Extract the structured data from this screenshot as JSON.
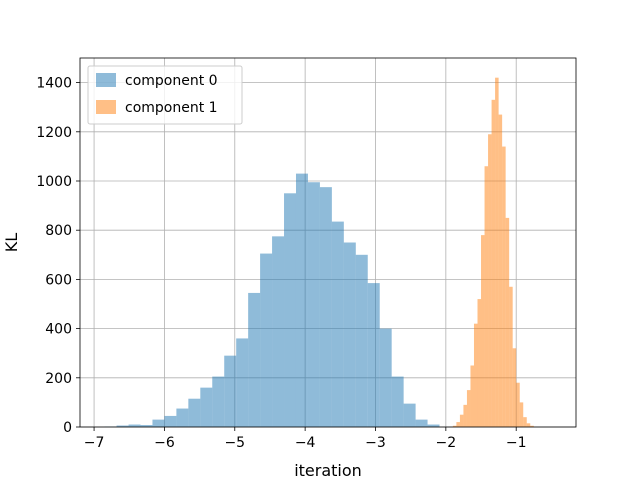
{
  "chart_data": {
    "type": "bar",
    "title": "",
    "xlabel": "iteration",
    "ylabel": "KL",
    "xlim": [
      -7.2,
      -0.15
    ],
    "ylim": [
      0,
      1500
    ],
    "x_ticks": [
      -7,
      -6,
      -5,
      -4,
      -3,
      -2,
      -1
    ],
    "x_tick_labels": [
      "−7",
      "−6",
      "−5",
      "−4",
      "−3",
      "−2",
      "−1"
    ],
    "y_ticks": [
      0,
      200,
      400,
      600,
      800,
      1000,
      1200,
      1400
    ],
    "y_tick_labels": [
      "0",
      "200",
      "400",
      "600",
      "800",
      "1000",
      "1200",
      "1400"
    ],
    "grid": true,
    "legend_position": "top-left",
    "series": [
      {
        "name": "component 0",
        "color": "#1f77b4",
        "alpha": 0.5,
        "bin_start": -6.85,
        "bin_width": 0.17,
        "counts": [
          2,
          6,
          10,
          8,
          30,
          45,
          75,
          115,
          160,
          205,
          290,
          360,
          545,
          705,
          775,
          950,
          1030,
          995,
          975,
          835,
          750,
          700,
          585,
          400,
          205,
          95,
          30,
          10
        ]
      },
      {
        "name": "component 1",
        "color": "#ff7f0e",
        "alpha": 0.5,
        "bin_start": -1.9,
        "bin_width": 0.05,
        "counts": [
          5,
          20,
          50,
          90,
          150,
          250,
          420,
          520,
          780,
          1060,
          1190,
          1330,
          1420,
          1270,
          1140,
          850,
          570,
          320,
          180,
          100,
          40,
          15,
          5
        ]
      }
    ]
  }
}
